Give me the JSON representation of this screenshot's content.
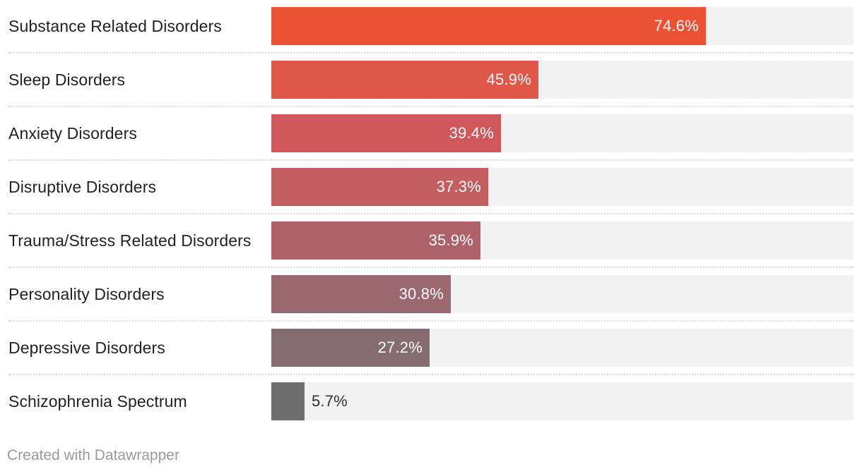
{
  "chart_data": {
    "type": "bar",
    "orientation": "horizontal",
    "categories": [
      "Substance Related Disorders",
      "Sleep Disorders",
      "Anxiety Disorders",
      "Disruptive Disorders",
      "Trauma/Stress Related Disorders",
      "Personality Disorders",
      "Depressive Disorders",
      "Schizophrenia Spectrum"
    ],
    "values": [
      74.6,
      45.9,
      39.4,
      37.3,
      35.9,
      30.8,
      27.2,
      5.7
    ],
    "value_labels": [
      "74.6%",
      "45.9%",
      "39.4%",
      "37.3%",
      "35.9%",
      "30.8%",
      "27.2%",
      "5.7%"
    ],
    "xlim": [
      0,
      100
    ],
    "unit": "%",
    "bar_colors": [
      "#eb5233",
      "#de5749",
      "#d1585a",
      "#c35e60",
      "#ad6169",
      "#9b6870",
      "#856c70",
      "#6e6e6e"
    ],
    "track_color": "#f2f2f2",
    "grid": false,
    "legend": "none"
  },
  "footer": {
    "credit": "Created with Datawrapper"
  }
}
